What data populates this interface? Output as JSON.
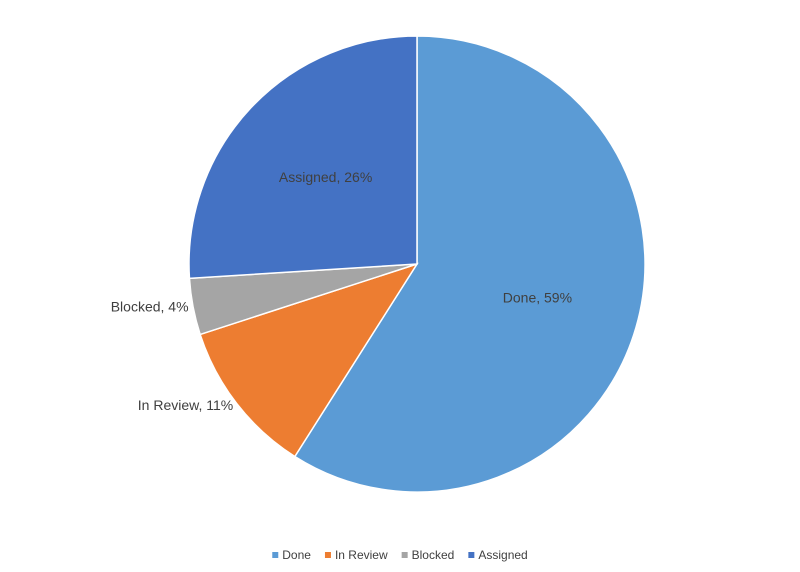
{
  "chart_data": {
    "type": "pie",
    "categories": [
      "Done",
      "In Review",
      "Blocked",
      "Assigned"
    ],
    "values": [
      59,
      11,
      4,
      26
    ],
    "value_labels": [
      "Done, 59%",
      "In Review, 11%",
      "Blocked, 4%",
      "Assigned, 26%"
    ],
    "colors": [
      "#5b9bd5",
      "#ed7d31",
      "#a5a5a5",
      "#4472c4"
    ],
    "legend": "bottom"
  }
}
